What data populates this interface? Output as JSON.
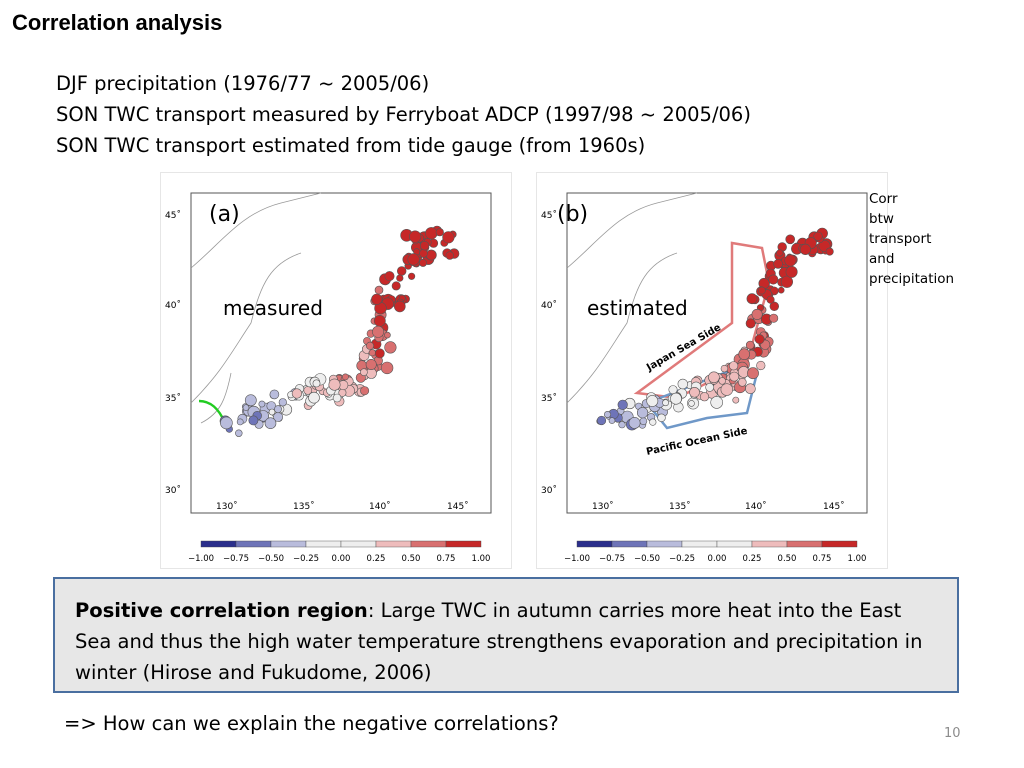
{
  "slide": {
    "title": "Correlation analysis",
    "bullets": [
      "DJF precipitation (1976/77 ~ 2005/06)",
      "SON TWC transport measured by Ferryboat ADCP (1997/98 ~ 2005/06)",
      "SON TWC transport estimated from tide gauge (from 1960s)"
    ],
    "side_note": [
      "Corr",
      "btw",
      "transport",
      "and",
      "precipitation"
    ],
    "callout": {
      "bold": "Positive correlation region",
      "text": ": Large TWC in autumn carries more heat into the East Sea and thus the high water temperature strengthens evaporation and precipitation in winter (Hirose and Fukudome, 2006)"
    },
    "question": "=> How can we explain the negative correlations?",
    "page_number": "10"
  },
  "figure": {
    "panels": [
      {
        "letter": "(a)",
        "overlay": "measured"
      },
      {
        "letter": "(b)",
        "overlay": "estimated"
      }
    ],
    "region_labels": [
      "Japan Sea Side",
      "Pacific Ocean Side"
    ],
    "lat_ticks": [
      "45˚",
      "40˚",
      "35˚",
      "30˚"
    ],
    "lon_ticks": [
      "130˚",
      "135˚",
      "140˚",
      "145˚"
    ],
    "colorbar_ticks": [
      "−1.00",
      "−0.75",
      "−0.50",
      "−0.25",
      "0.00",
      "0.25",
      "0.50",
      "0.75",
      "1.00"
    ],
    "colors": {
      "negative_strong": "#2b2f8c",
      "negative_mid": "#6e74b8",
      "negative_light": "#b9bcdc",
      "neutral": "#eeeeee",
      "positive_light": "#eebcbc",
      "positive_mid": "#d87070",
      "positive_strong": "#c62828",
      "japan_sea_outline": "#e07a7a",
      "pacific_outline": "#6f98c8",
      "green_line": "#22cc22"
    }
  }
}
